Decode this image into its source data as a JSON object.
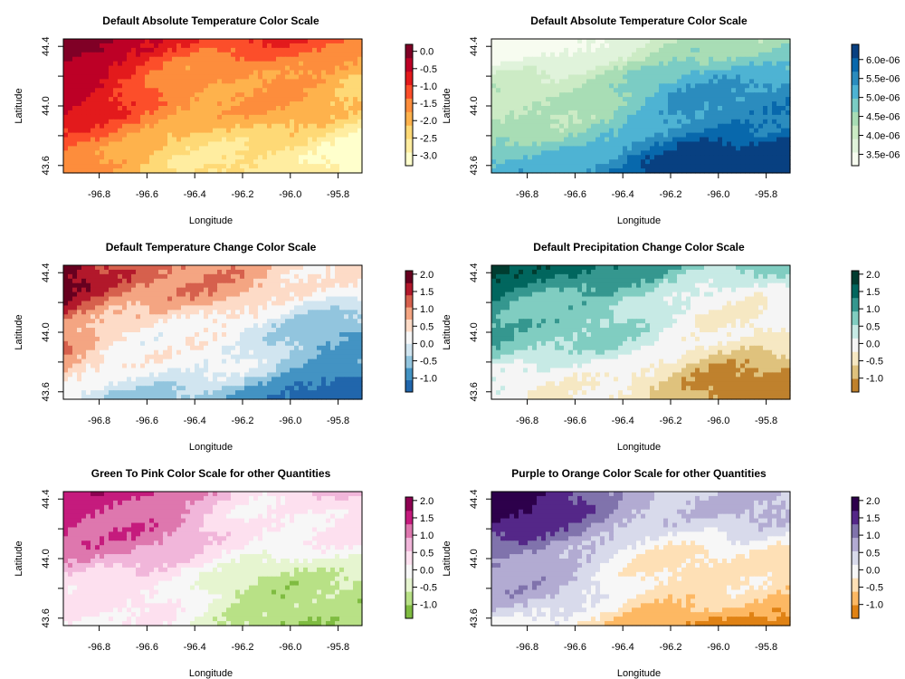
{
  "chart_data": [
    {
      "type": "heatmap",
      "title": "Default Absolute Temperature Color Scale",
      "xlabel": "Longitude",
      "ylabel": "Latitude",
      "xlim": [
        -96.95,
        -95.7
      ],
      "ylim": [
        43.55,
        44.45
      ],
      "x_ticks": [
        -96.8,
        -96.6,
        -96.4,
        -96.2,
        -96.0,
        -95.8
      ],
      "x_tick_labels": [
        "-96.8",
        "-96.6",
        "-96.4",
        "-96.2",
        "-96.0",
        "-95.8"
      ],
      "y_ticks": [
        43.6,
        44.0,
        44.4
      ],
      "y_tick_labels": [
        "43.6",
        "44.0",
        "44.4"
      ],
      "colorbar_ticks": [
        "0.0",
        "-0.5",
        "-1.0",
        "-1.5",
        "-2.0",
        "-2.5",
        "-3.0"
      ],
      "colorbar_range": [
        -3.3,
        0.2
      ],
      "colors": [
        "#FFFFCC",
        "#FFEDA0",
        "#FED976",
        "#FEB24C",
        "#FD8D3C",
        "#FC4E2A",
        "#E31A1C",
        "#BD0026",
        "#800026"
      ],
      "gradient_direction": "low-bottom-right-high-top-left"
    },
    {
      "type": "heatmap",
      "title": "Default Absolute Temperature Color Scale",
      "xlabel": "Longitude",
      "ylabel": "Latitude",
      "xlim": [
        -96.95,
        -95.7
      ],
      "ylim": [
        43.55,
        44.45
      ],
      "x_ticks": [
        -96.8,
        -96.6,
        -96.4,
        -96.2,
        -96.0,
        -95.8
      ],
      "x_tick_labels": [
        "-96.8",
        "-96.6",
        "-96.4",
        "-96.2",
        "-96.0",
        "-95.8"
      ],
      "y_ticks": [
        43.6,
        44.0,
        44.4
      ],
      "y_tick_labels": [
        "43.6",
        "44.0",
        "44.4"
      ],
      "colorbar_ticks": [
        "6.0e-06",
        "5.5e-06",
        "5.0e-06",
        "4.5e-06",
        "4.0e-06",
        "3.5e-06"
      ],
      "colorbar_range": [
        3.2e-06,
        6.4e-06
      ],
      "colors": [
        "#F7FCF0",
        "#E0F3DB",
        "#CCEBC5",
        "#A8DDB5",
        "#7BCCC4",
        "#4EB3D3",
        "#2B8CBE",
        "#0868AC",
        "#084081"
      ],
      "gradient_direction": "low-top-left-high-bottom-right"
    },
    {
      "type": "heatmap",
      "title": "Default Temperature Change Color Scale",
      "xlabel": "Longitude",
      "ylabel": "Latitude",
      "xlim": [
        -96.95,
        -95.7
      ],
      "ylim": [
        43.55,
        44.45
      ],
      "x_ticks": [
        -96.8,
        -96.6,
        -96.4,
        -96.2,
        -96.0,
        -95.8
      ],
      "x_tick_labels": [
        "-96.8",
        "-96.6",
        "-96.4",
        "-96.2",
        "-96.0",
        "-95.8"
      ],
      "y_ticks": [
        43.6,
        44.0,
        44.4
      ],
      "y_tick_labels": [
        "43.6",
        "44.0",
        "44.4"
      ],
      "colorbar_ticks": [
        "2.0",
        "1.5",
        "1.0",
        "0.5",
        "0.0",
        "-0.5",
        "-1.0"
      ],
      "colorbar_range": [
        -1.4,
        2.1
      ],
      "colors": [
        "#2166AC",
        "#4393C3",
        "#92C5DE",
        "#D1E5F0",
        "#F7F7F7",
        "#FDDBC7",
        "#F4A582",
        "#D6604D",
        "#B2182B",
        "#67001F"
      ],
      "gradient_direction": "low-bottom-right-high-top-left"
    },
    {
      "type": "heatmap",
      "title": "Default Precipitation Change Color Scale",
      "xlabel": "Longitude",
      "ylabel": "Latitude",
      "xlim": [
        -96.95,
        -95.7
      ],
      "ylim": [
        43.55,
        44.45
      ],
      "x_ticks": [
        -96.8,
        -96.6,
        -96.4,
        -96.2,
        -96.0,
        -95.8
      ],
      "x_tick_labels": [
        "-96.8",
        "-96.6",
        "-96.4",
        "-96.2",
        "-96.0",
        "-95.8"
      ],
      "y_ticks": [
        43.6,
        44.0,
        44.4
      ],
      "y_tick_labels": [
        "43.6",
        "44.0",
        "44.4"
      ],
      "colorbar_ticks": [
        "2.0",
        "1.5",
        "1.0",
        "0.5",
        "0.0",
        "-0.5",
        "-1.0"
      ],
      "colorbar_range": [
        -1.4,
        2.1
      ],
      "colors": [
        "#BF812D",
        "#DFC27D",
        "#F6E8C3",
        "#F5F5F5",
        "#C7EAE5",
        "#80CDC1",
        "#35978F",
        "#01665E",
        "#003C30"
      ],
      "gradient_direction": "low-bottom-right-high-top-left"
    },
    {
      "type": "heatmap",
      "title": "Green To Pink Color Scale for other Quantities",
      "xlabel": "Longitude",
      "ylabel": "Latitude",
      "xlim": [
        -96.95,
        -95.7
      ],
      "ylim": [
        43.55,
        44.45
      ],
      "x_ticks": [
        -96.8,
        -96.6,
        -96.4,
        -96.2,
        -96.0,
        -95.8
      ],
      "x_tick_labels": [
        "-96.8",
        "-96.6",
        "-96.4",
        "-96.2",
        "-96.0",
        "-95.8"
      ],
      "y_ticks": [
        43.6,
        44.0,
        44.4
      ],
      "y_tick_labels": [
        "43.6",
        "44.0",
        "44.4"
      ],
      "colorbar_ticks": [
        "2.0",
        "1.5",
        "1.0",
        "0.5",
        "0.0",
        "-0.5",
        "-1.0"
      ],
      "colorbar_range": [
        -1.4,
        2.1
      ],
      "colors": [
        "#7FBC41",
        "#B8E186",
        "#E6F5D0",
        "#F7F7F7",
        "#FDE0EF",
        "#F1B6DA",
        "#DE77AE",
        "#C51B7D",
        "#8E0152"
      ],
      "gradient_direction": "low-bottom-right-high-top-left"
    },
    {
      "type": "heatmap",
      "title": "Purple to Orange Color Scale for other Quantities",
      "xlabel": "Longitude",
      "ylabel": "Latitude",
      "xlim": [
        -96.95,
        -95.7
      ],
      "ylim": [
        43.55,
        44.45
      ],
      "x_ticks": [
        -96.8,
        -96.6,
        -96.4,
        -96.2,
        -96.0,
        -95.8
      ],
      "x_tick_labels": [
        "-96.8",
        "-96.6",
        "-96.4",
        "-96.2",
        "-96.0",
        "-95.8"
      ],
      "y_ticks": [
        43.6,
        44.0,
        44.4
      ],
      "y_tick_labels": [
        "43.6",
        "44.0",
        "44.4"
      ],
      "colorbar_ticks": [
        "2.0",
        "1.5",
        "1.0",
        "0.5",
        "0.0",
        "-0.5",
        "-1.0"
      ],
      "colorbar_range": [
        -1.4,
        2.1
      ],
      "colors": [
        "#E08214",
        "#FDB863",
        "#FEE0B6",
        "#F7F7F7",
        "#D8DAEB",
        "#B2ABD2",
        "#8073AC",
        "#542788",
        "#2D004B"
      ],
      "gradient_direction": "low-bottom-right-high-top-left"
    }
  ]
}
